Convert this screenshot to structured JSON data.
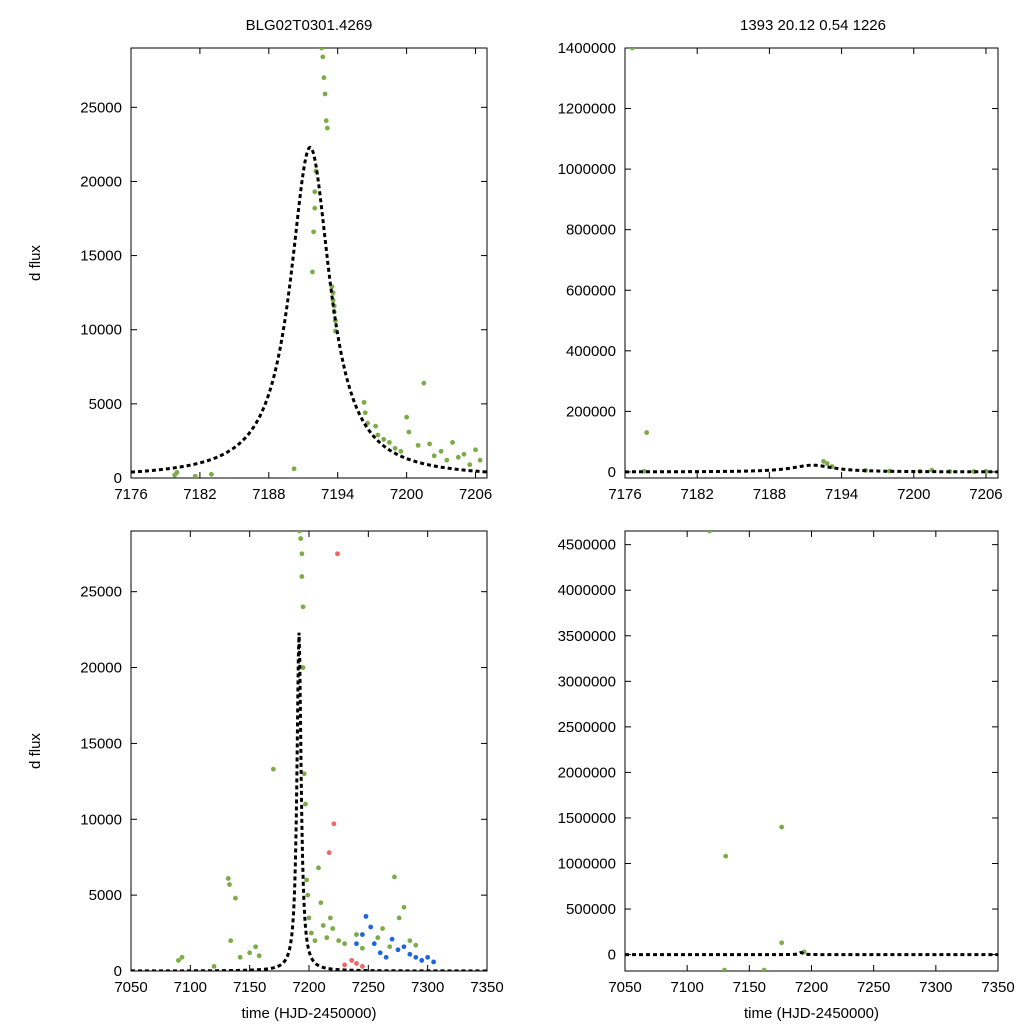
{
  "titles": {
    "left": "BLG02T0301.4269",
    "right": "1393  20.12  0.54  1226"
  },
  "colors": {
    "green": "#7cac48",
    "red": "#ee6666",
    "blue": "#1f66dd",
    "model": "#000000",
    "frame": "#000000"
  },
  "chart_data": [
    {
      "type": "scatter",
      "panel": "top-left",
      "xlabel": "",
      "ylabel": "d flux",
      "xlim": [
        7176,
        7207
      ],
      "ylim": [
        0,
        29000
      ],
      "xticks": [
        7176,
        7182,
        7188,
        7194,
        7200,
        7206
      ],
      "yticks": [
        0,
        5000,
        10000,
        15000,
        20000,
        25000
      ],
      "model": {
        "t0": 7191.6,
        "tE": 2.1,
        "amp": 22300,
        "style": "dashed"
      },
      "series": [
        {
          "color": "green",
          "points": [
            [
              7179.8,
              200
            ],
            [
              7180.0,
              380
            ],
            [
              7181.6,
              120
            ],
            [
              7183.0,
              250
            ],
            [
              7190.2,
              620
            ],
            [
              7191.8,
              13900
            ],
            [
              7191.9,
              16600
            ],
            [
              7192.0,
              18200
            ],
            [
              7192.0,
              19300
            ],
            [
              7192.1,
              20700
            ],
            [
              7192.6,
              29000
            ],
            [
              7192.7,
              28400
            ],
            [
              7192.8,
              27000
            ],
            [
              7192.9,
              25900
            ],
            [
              7193.0,
              24100
            ],
            [
              7193.1,
              23600
            ],
            [
              7193.5,
              12900
            ],
            [
              7193.6,
              12500
            ],
            [
              7193.6,
              12000
            ],
            [
              7193.7,
              11600
            ],
            [
              7193.7,
              11200
            ],
            [
              7193.8,
              10600
            ],
            [
              7193.8,
              9900
            ],
            [
              7196.3,
              5100
            ],
            [
              7196.4,
              4400
            ],
            [
              7196.6,
              3700
            ],
            [
              7197.3,
              3500
            ],
            [
              7197.5,
              2900
            ],
            [
              7198.0,
              2600
            ],
            [
              7198.5,
              2400
            ],
            [
              7199.0,
              2000
            ],
            [
              7199.5,
              1800
            ],
            [
              7200.0,
              4100
            ],
            [
              7200.2,
              3100
            ],
            [
              7201.0,
              2200
            ],
            [
              7201.5,
              6400
            ],
            [
              7202.0,
              2300
            ],
            [
              7202.4,
              1500
            ],
            [
              7203.0,
              1800
            ],
            [
              7203.5,
              1200
            ],
            [
              7204.0,
              2400
            ],
            [
              7204.5,
              1400
            ],
            [
              7205.0,
              1600
            ],
            [
              7205.5,
              900
            ],
            [
              7206.0,
              1900
            ],
            [
              7206.4,
              1200
            ]
          ]
        }
      ]
    },
    {
      "type": "scatter",
      "panel": "top-right",
      "xlabel": "",
      "ylabel": "",
      "xlim": [
        7176,
        7207
      ],
      "ylim": [
        -20000,
        1400000
      ],
      "xticks": [
        7176,
        7182,
        7188,
        7194,
        7200,
        7206
      ],
      "yticks": [
        0,
        200000,
        400000,
        600000,
        800000,
        1000000,
        1200000,
        1400000
      ],
      "model": {
        "t0": 7191.6,
        "tE": 2.1,
        "amp": 22300,
        "style": "dashed"
      },
      "series": [
        {
          "color": "green",
          "points": [
            [
              7176.6,
              1400000
            ],
            [
              7177.8,
              130000
            ],
            [
              7177.6,
              2000
            ],
            [
              7192.5,
              35000
            ],
            [
              7192.8,
              28000
            ],
            [
              7193.2,
              18000
            ],
            [
              7196.0,
              5000
            ],
            [
              7198.0,
              3000
            ],
            [
              7200.5,
              2500
            ],
            [
              7201.5,
              6000
            ],
            [
              7203.0,
              1500
            ],
            [
              7205.0,
              1200
            ],
            [
              7206.0,
              1800
            ]
          ]
        }
      ]
    },
    {
      "type": "scatter",
      "panel": "bottom-left",
      "xlabel": "time (HJD-2450000)",
      "ylabel": "d flux",
      "xlim": [
        7050,
        7350
      ],
      "ylim": [
        0,
        29000
      ],
      "xticks": [
        7050,
        7100,
        7150,
        7200,
        7250,
        7300,
        7350
      ],
      "yticks": [
        0,
        5000,
        10000,
        15000,
        20000,
        25000
      ],
      "model": {
        "t0": 7191.6,
        "tE": 2.1,
        "amp": 22300,
        "style": "dashed"
      },
      "series": [
        {
          "color": "green",
          "points": [
            [
              7090,
              700
            ],
            [
              7093,
              900
            ],
            [
              7120,
              300
            ],
            [
              7132,
              6100
            ],
            [
              7133,
              5700
            ],
            [
              7134,
              2000
            ],
            [
              7138,
              4800
            ],
            [
              7142,
              900
            ],
            [
              7150,
              1200
            ],
            [
              7155,
              1600
            ],
            [
              7158,
              1000
            ],
            [
              7170,
              13300
            ],
            [
              7192,
              29000
            ],
            [
              7193,
              28500
            ],
            [
              7194,
              27500
            ],
            [
              7194,
              26000
            ],
            [
              7195,
              24000
            ],
            [
              7195,
              20000
            ],
            [
              7196,
              13000
            ],
            [
              7197,
              11000
            ],
            [
              7198,
              6000
            ],
            [
              7199,
              5000
            ],
            [
              7200,
              3500
            ],
            [
              7202,
              2500
            ],
            [
              7205,
              2000
            ],
            [
              7208,
              6800
            ],
            [
              7210,
              4500
            ],
            [
              7212,
              3000
            ],
            [
              7215,
              2200
            ],
            [
              7218,
              3500
            ],
            [
              7220,
              2800
            ],
            [
              7225,
              2000
            ],
            [
              7230,
              1800
            ],
            [
              7240,
              2400
            ],
            [
              7245,
              1500
            ],
            [
              7258,
              2200
            ],
            [
              7262,
              2800
            ],
            [
              7268,
              1600
            ],
            [
              7272,
              6200
            ],
            [
              7276,
              3500
            ],
            [
              7280,
              4200
            ],
            [
              7285,
              2000
            ],
            [
              7290,
              1700
            ]
          ]
        },
        {
          "color": "red",
          "points": [
            [
              7224,
              27500
            ],
            [
              7221,
              9700
            ],
            [
              7217,
              7800
            ],
            [
              7230,
              400
            ],
            [
              7236,
              700
            ],
            [
              7240,
              500
            ],
            [
              7245,
              300
            ]
          ]
        },
        {
          "color": "blue",
          "points": [
            [
              7240,
              1800
            ],
            [
              7245,
              2400
            ],
            [
              7248,
              3600
            ],
            [
              7252,
              2900
            ],
            [
              7255,
              1800
            ],
            [
              7260,
              1200
            ],
            [
              7265,
              900
            ],
            [
              7270,
              2100
            ],
            [
              7275,
              1400
            ],
            [
              7280,
              1600
            ],
            [
              7285,
              1100
            ],
            [
              7290,
              900
            ],
            [
              7295,
              700
            ],
            [
              7300,
              900
            ],
            [
              7305,
              600
            ]
          ]
        }
      ]
    },
    {
      "type": "scatter",
      "panel": "bottom-right",
      "xlabel": "time (HJD-2450000)",
      "ylabel": "",
      "xlim": [
        7050,
        7350
      ],
      "ylim": [
        -180000,
        4650000
      ],
      "xticks": [
        7050,
        7100,
        7150,
        7200,
        7250,
        7300,
        7350
      ],
      "yticks": [
        0,
        500000,
        1000000,
        1500000,
        2000000,
        2500000,
        3000000,
        3500000,
        4000000,
        4500000
      ],
      "model": {
        "t0": 7191.6,
        "tE": 2.1,
        "amp": 22300,
        "style": "dashed"
      },
      "series": [
        {
          "color": "green",
          "points": [
            [
              7118,
              4650000
            ],
            [
              7176,
              1400000
            ],
            [
              7131,
              1080000
            ],
            [
              7176,
              130000
            ],
            [
              7130,
              -170000
            ],
            [
              7162,
              -170000
            ],
            [
              7194,
              30000
            ]
          ]
        },
        {
          "color": "red",
          "points": []
        },
        {
          "color": "blue",
          "points": []
        }
      ]
    }
  ]
}
